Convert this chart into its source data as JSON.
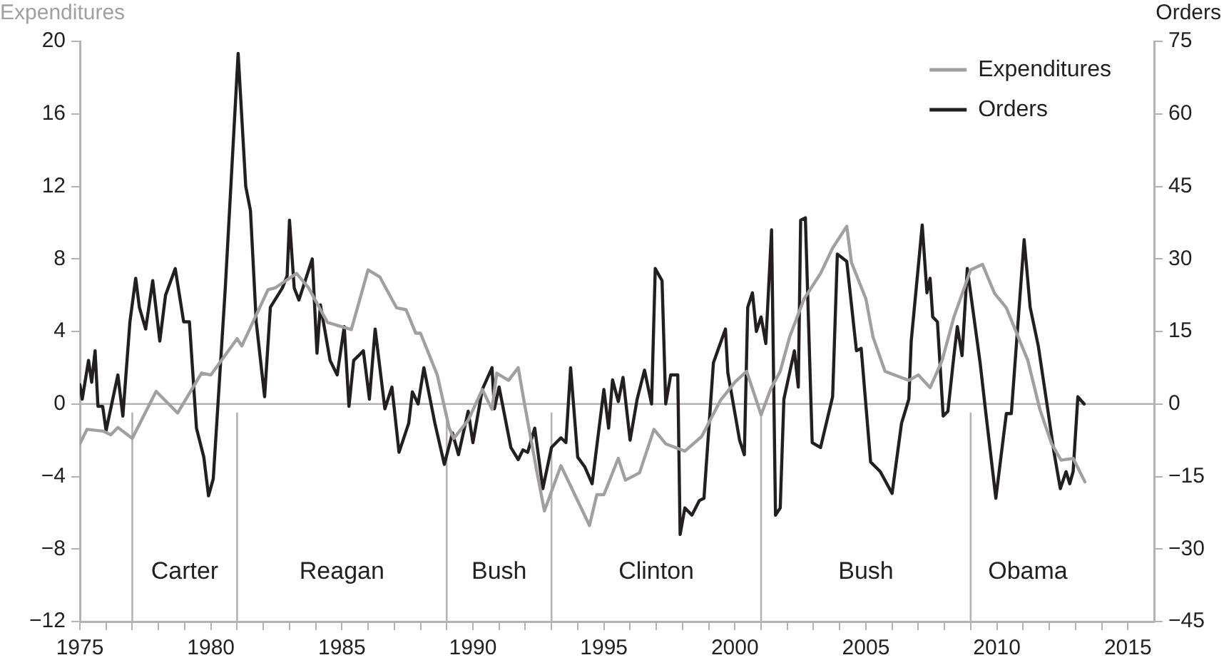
{
  "chart_data": {
    "type": "line",
    "ylabel": "Expenditures",
    "y2label": "Orders",
    "xlim": [
      1975,
      2016
    ],
    "xticks": [
      1975,
      {
        "value": 1976,
        "label": null
      },
      {
        "value": 1977,
        "label": null
      },
      {
        "value": 1978,
        "label": null
      },
      {
        "value": 1979,
        "label": null
      },
      1980,
      {
        "value": 1981,
        "label": null
      },
      {
        "value": 1982,
        "label": null
      },
      {
        "value": 1983,
        "label": null
      },
      {
        "value": 1984,
        "label": null
      },
      1985,
      {
        "value": 1986,
        "label": null
      },
      {
        "value": 1987,
        "label": null
      },
      {
        "value": 1988,
        "label": null
      },
      {
        "value": 1989,
        "label": null
      },
      1990,
      {
        "value": 1991,
        "label": null
      },
      {
        "value": 1992,
        "label": null
      },
      {
        "value": 1993,
        "label": null
      },
      {
        "value": 1994,
        "label": null
      },
      1995,
      {
        "value": 1996,
        "label": null
      },
      {
        "value": 1997,
        "label": null
      },
      {
        "value": 1998,
        "label": null
      },
      {
        "value": 1999,
        "label": null
      },
      2000,
      {
        "value": 2001,
        "label": null
      },
      {
        "value": 2002,
        "label": null
      },
      {
        "value": 2003,
        "label": null
      },
      {
        "value": 2004,
        "label": null
      },
      2005,
      {
        "value": 2006,
        "label": null
      },
      {
        "value": 2007,
        "label": null
      },
      {
        "value": 2008,
        "label": null
      },
      {
        "value": 2009,
        "label": null
      },
      2010,
      {
        "value": 2011,
        "label": null
      },
      {
        "value": 2012,
        "label": null
      },
      {
        "value": 2013,
        "label": null
      },
      {
        "value": 2014,
        "label": null
      },
      2015
    ],
    "ylim": [
      -12,
      20
    ],
    "yticks": [
      {
        "value": -12,
        "label": "−12"
      },
      {
        "value": -8,
        "label": "−8"
      },
      {
        "value": -4,
        "label": "−4"
      },
      0,
      4,
      8,
      12,
      16,
      20
    ],
    "y2lim": [
      -45,
      75
    ],
    "y2ticks": [
      {
        "value": -45,
        "label": "−45"
      },
      {
        "value": -30,
        "label": "−30"
      },
      {
        "value": -15,
        "label": "−15"
      },
      0,
      15,
      30,
      45,
      60,
      75
    ],
    "grid": false,
    "legend": "top right",
    "marker": "none",
    "line_style": "solid",
    "ref_lines": [
      {
        "axis": "y",
        "value": 0,
        "color": "#b3b3b3"
      },
      {
        "axis": "x",
        "value": 1977,
        "color": "#b3b3b3"
      },
      {
        "axis": "x",
        "value": 1981,
        "color": "#b3b3b3"
      },
      {
        "axis": "x",
        "value": 1989,
        "color": "#b3b3b3"
      },
      {
        "axis": "x",
        "value": 1993,
        "color": "#b3b3b3"
      },
      {
        "axis": "x",
        "value": 2001,
        "color": "#b3b3b3"
      },
      {
        "axis": "x",
        "value": 2009,
        "color": "#b3b3b3"
      }
    ],
    "annotations": [
      "Carter",
      "Reagan",
      "Bush",
      "Clinton",
      "Bush",
      "Obama"
    ],
    "series": [
      {
        "name": "Expenditures",
        "color": "#a0a0a0",
        "x": [
          1975.0,
          1975.27,
          1975.9,
          1976.18,
          1976.45,
          1977.0,
          1977.91,
          1978.73,
          1979.64,
          1980.0,
          1981.0,
          1981.18,
          1982.18,
          1982.45,
          1983.27,
          1983.73,
          1984.45,
          1985.36,
          1986.0,
          1986.45,
          1987.09,
          1987.45,
          1987.82,
          1988.0,
          1988.64,
          1989.09,
          1989.27,
          1989.82,
          1990.36,
          1990.73,
          1990.91,
          1991.36,
          1991.73,
          1991.91,
          1992.45,
          1992.73,
          1993.36,
          1994.45,
          1994.73,
          1995.0,
          1995.55,
          1995.82,
          1996.36,
          1996.91,
          1997.36,
          1998.09,
          1998.73,
          1999.45,
          2000.0,
          2000.45,
          2001.0,
          2001.36,
          2001.73,
          2002.09,
          2002.64,
          2003.27,
          2003.73,
          2004.27,
          2004.45,
          2005.0,
          2005.27,
          2005.73,
          2006.64,
          2007.0,
          2007.45,
          2007.91,
          2008.36,
          2009.0,
          2009.45,
          2009.91,
          2010.36,
          2011.18,
          2011.64,
          2012.09,
          2012.45,
          2012.91,
          2013.36
        ],
        "values": [
          -2.2,
          -1.4,
          -1.5,
          -1.7,
          -1.3,
          -1.9,
          0.7,
          -0.5,
          1.7,
          1.6,
          3.6,
          3.2,
          6.3,
          6.4,
          7.2,
          6.4,
          4.5,
          4.1,
          7.4,
          7.0,
          5.3,
          5.2,
          3.9,
          3.9,
          1.6,
          -1.3,
          -1.9,
          -0.9,
          0.8,
          -0.3,
          1.7,
          1.3,
          2.0,
          0.5,
          -3.8,
          -5.9,
          -3.4,
          -6.7,
          -5.0,
          -5.0,
          -3.0,
          -4.2,
          -3.8,
          -1.4,
          -2.2,
          -2.6,
          -1.8,
          0.2,
          1.2,
          1.8,
          -0.6,
          0.8,
          1.8,
          3.7,
          5.8,
          7.2,
          8.6,
          9.8,
          7.8,
          5.8,
          3.7,
          1.8,
          1.3,
          1.6,
          0.9,
          2.4,
          4.8,
          7.4,
          7.7,
          6.1,
          5.3,
          2.4,
          -0.3,
          -2.2,
          -3.1,
          -3.0,
          -4.3
        ]
      },
      {
        "name": "Orders",
        "color": "#231f20",
        "axis": "y2",
        "x": [
          1975.0,
          1975.09,
          1975.33,
          1975.45,
          1975.58,
          1975.69,
          1975.87,
          1976.0,
          1976.45,
          1976.64,
          1976.91,
          1977.13,
          1977.27,
          1977.51,
          1977.78,
          1978.05,
          1978.27,
          1978.64,
          1978.96,
          1979.18,
          1979.45,
          1979.73,
          1979.91,
          1980.09,
          1980.55,
          1981.04,
          1981.33,
          1981.51,
          1981.73,
          1982.05,
          1982.27,
          1982.73,
          1982.91,
          1983.0,
          1983.18,
          1983.36,
          1983.87,
          1984.05,
          1984.18,
          1984.55,
          1984.82,
          1985.09,
          1985.27,
          1985.45,
          1985.64,
          1985.82,
          1986.05,
          1986.27,
          1986.64,
          1986.91,
          1987.18,
          1987.55,
          1987.69,
          1987.91,
          1988.13,
          1988.55,
          1988.91,
          1989.22,
          1989.45,
          1989.82,
          1990.0,
          1990.36,
          1990.73,
          1990.82,
          1991.0,
          1991.45,
          1991.73,
          1991.91,
          1992.09,
          1992.36,
          1992.67,
          1993.0,
          1993.36,
          1993.55,
          1993.73,
          1994.0,
          1994.27,
          1994.55,
          1995.0,
          1995.18,
          1995.33,
          1995.55,
          1995.73,
          1996.0,
          1996.27,
          1996.55,
          1996.82,
          1996.96,
          1997.22,
          1997.36,
          1997.55,
          1997.82,
          1997.91,
          1998.09,
          1998.36,
          1998.64,
          1998.82,
          1999.18,
          1999.64,
          1999.73,
          2000.18,
          2000.36,
          2000.49,
          2000.67,
          2000.82,
          2001.0,
          2001.18,
          2001.4,
          2001.55,
          2001.73,
          2001.87,
          2002.27,
          2002.42,
          2002.51,
          2002.69,
          2002.95,
          2003.27,
          2003.73,
          2003.91,
          2004.27,
          2004.64,
          2004.82,
          2005.18,
          2005.55,
          2006.0,
          2006.36,
          2006.64,
          2006.73,
          2007.15,
          2007.33,
          2007.45,
          2007.55,
          2007.73,
          2007.95,
          2008.13,
          2008.36,
          2008.49,
          2008.67,
          2008.87,
          2009.36,
          2009.58,
          2009.96,
          2010.36,
          2010.55,
          2011.04,
          2011.27,
          2011.58,
          2011.91,
          2012.18,
          2012.42,
          2012.64,
          2012.78,
          2012.91,
          2013.09,
          2013.33
        ],
        "values": [
          4,
          1,
          9,
          4.5,
          11,
          -0.5,
          -0.5,
          -5.5,
          6,
          -2.5,
          17,
          26,
          20,
          15.5,
          25.5,
          13,
          22.5,
          28,
          17,
          17,
          -5,
          -11,
          -19,
          -15.5,
          24,
          72.5,
          45,
          40,
          17,
          1.5,
          20,
          24,
          26.5,
          38,
          24,
          21.5,
          30,
          10.5,
          20.5,
          9,
          6,
          16,
          -0.5,
          9,
          10,
          11,
          1,
          15.5,
          -1,
          3.5,
          -10,
          -4,
          2.5,
          0,
          7.5,
          -4,
          -12.5,
          -6,
          -10.5,
          -1.5,
          -8,
          3,
          7.5,
          -1,
          3.5,
          -9,
          -11.5,
          -9.5,
          -10,
          -5,
          -17.5,
          -9,
          -7,
          -8,
          7.5,
          -11,
          -13,
          -16.5,
          3,
          -5,
          5,
          0.5,
          5.5,
          -7.5,
          1,
          7,
          0,
          28,
          25.5,
          0,
          6,
          6,
          -27,
          -21.5,
          -23,
          -20,
          -19.5,
          8.5,
          15.5,
          6.5,
          -7.5,
          -10.5,
          20,
          23,
          15,
          18,
          12.5,
          36,
          -23,
          -21.5,
          1,
          11,
          3.5,
          38,
          38.5,
          -8,
          -9,
          1.5,
          31,
          29.5,
          11,
          11.5,
          -12,
          -14,
          -18.5,
          -4,
          1,
          13,
          37,
          23,
          26,
          18,
          17,
          -2.5,
          -1.5,
          10,
          16,
          10,
          28,
          8.5,
          -2,
          -19.5,
          -2,
          -2,
          34,
          20,
          12,
          0,
          -10,
          -17.5,
          -14,
          -16.5,
          -14,
          1.5,
          0
        ]
      }
    ]
  }
}
